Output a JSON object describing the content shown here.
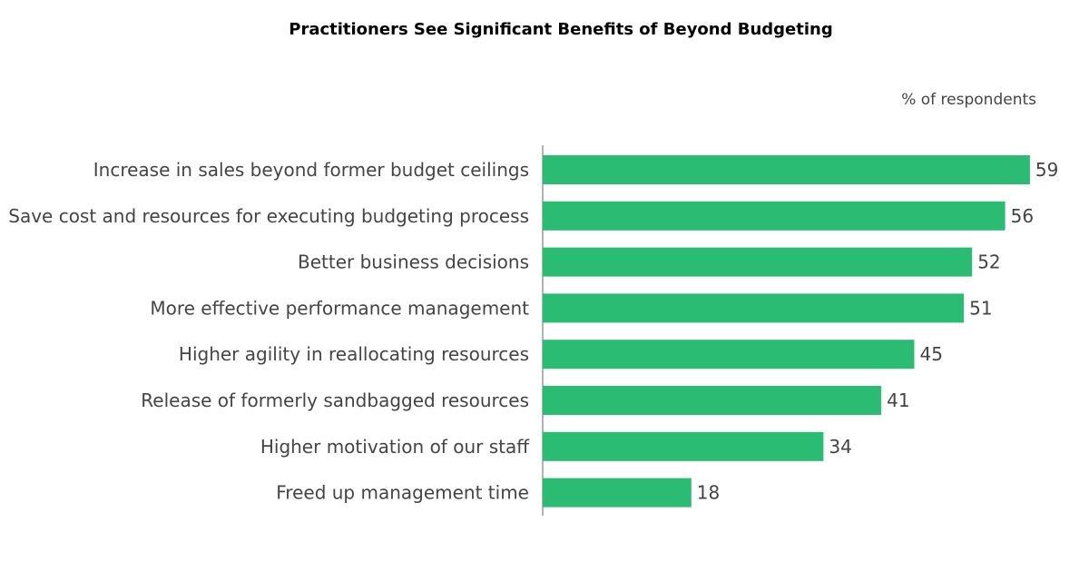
{
  "colors": {
    "bar": "#2bbc74",
    "axis": "#999999",
    "text": "#444444"
  },
  "chart_data": {
    "type": "bar",
    "orientation": "horizontal",
    "title": "Practitioners See Significant Benefits of Beyond Budgeting",
    "unit_label": "% of respondents",
    "xlim": [
      0,
      60
    ],
    "grid": false,
    "categories": [
      "Increase in sales beyond former budget ceilings",
      "Save cost and resources for executing budgeting process",
      "Better business decisions",
      "More effective performance management",
      "Higher agility in reallocating resources",
      "Release of formerly sandbagged resources",
      "Higher motivation of our staff",
      "Freed up management time"
    ],
    "values": [
      59,
      56,
      52,
      51,
      45,
      41,
      34,
      18
    ]
  }
}
